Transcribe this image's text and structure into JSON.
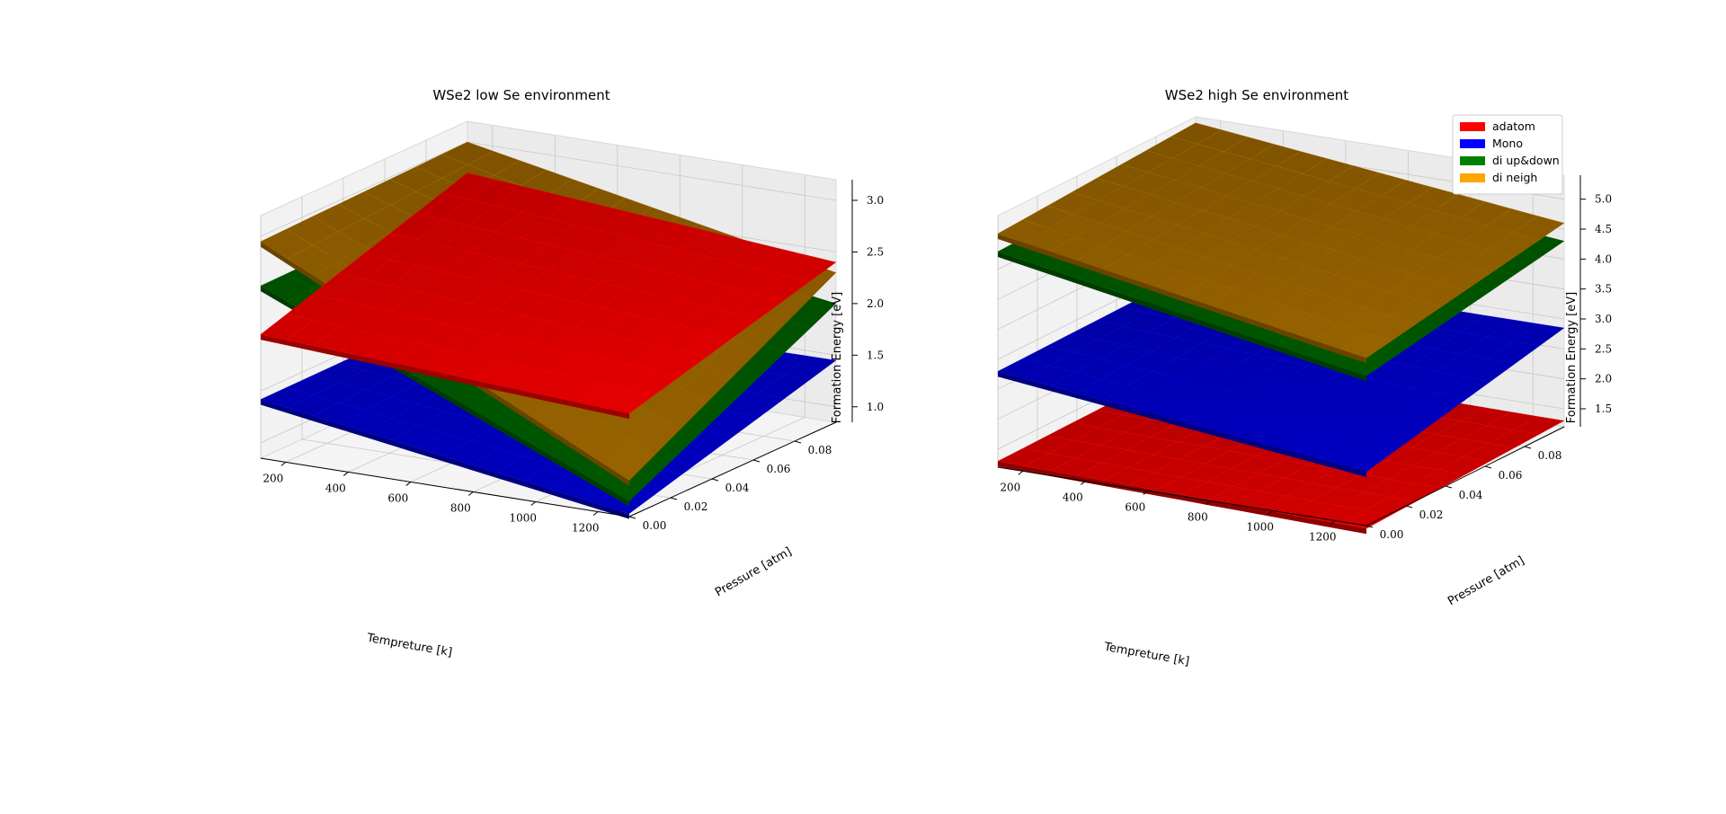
{
  "chart_data": [
    {
      "type": "surface3d",
      "title": "WSe2 low Se environment",
      "xlabel": "Tempreture [k]",
      "ylabel": "Pressure [atm]",
      "zlabel": "Formation Energy [eV]",
      "xlim": [
        120,
        1300
      ],
      "ylim": [
        0,
        0.1
      ],
      "zlim": [
        0.85,
        3.2
      ],
      "xticks": [
        "200",
        "400",
        "600",
        "800",
        "1000",
        "1200"
      ],
      "yticks": [
        "0.00",
        "0.02",
        "0.04",
        "0.06",
        "0.08"
      ],
      "zticks": [
        "1.0",
        "1.5",
        "2.0",
        "2.5",
        "3.0"
      ],
      "grid": true,
      "series": [
        {
          "name": "Mono",
          "color": "#0000b0",
          "z_corners": {
            "tmin_p0": 1.42,
            "tmax_p0": 0.88,
            "tmin_pmax": 1.43,
            "tmax_pmax": 1.45
          }
        },
        {
          "name": "di up&down",
          "color": "#005000",
          "z_corners": {
            "tmin_p0": 2.52,
            "tmax_p0": 1.0,
            "tmin_pmax": 2.55,
            "tmax_pmax": 2.0
          }
        },
        {
          "name": "di neigh",
          "color": "#8a5a00",
          "z_corners": {
            "tmin_p0": 2.95,
            "tmax_p0": 1.2,
            "tmin_pmax": 3.0,
            "tmax_pmax": 2.3
          }
        },
        {
          "name": "adatom",
          "color": "#d00000",
          "z_corners": {
            "tmin_p0": 2.05,
            "tmax_p0": 1.85,
            "tmin_pmax": 2.7,
            "tmax_pmax": 2.4
          }
        }
      ]
    },
    {
      "type": "surface3d",
      "title": "WSe2 high Se environment",
      "xlabel": "Tempreture [k]",
      "ylabel": "Pressure [atm]",
      "zlabel": "Formation Energy [eV]",
      "xlim": [
        120,
        1300
      ],
      "ylim": [
        0,
        0.1
      ],
      "zlim": [
        1.2,
        5.4
      ],
      "xticks": [
        "200",
        "400",
        "600",
        "800",
        "1000",
        "1200"
      ],
      "yticks": [
        "0.00",
        "0.02",
        "0.04",
        "0.06",
        "0.08"
      ],
      "zticks": [
        "1.5",
        "2.0",
        "2.5",
        "3.0",
        "3.5",
        "4.0",
        "4.5",
        "5.0"
      ],
      "grid": true,
      "legend": {
        "placement": "top-right",
        "entries": [
          {
            "label": "adatom",
            "color": "#ff0000"
          },
          {
            "label": "Mono",
            "color": "#0000ff"
          },
          {
            "label": "di up&down",
            "color": "#008000"
          },
          {
            "label": "di neigh",
            "color": "#ffa500"
          }
        ]
      },
      "series": [
        {
          "name": "adatom",
          "color": "#c00000",
          "z_corners": {
            "tmin_p0": 1.3,
            "tmax_p0": 1.15,
            "tmin_pmax": 1.35,
            "tmax_pmax": 1.3
          }
        },
        {
          "name": "Mono",
          "color": "#0000b0",
          "z_corners": {
            "tmin_p0": 2.8,
            "tmax_p0": 2.1,
            "tmin_pmax": 2.85,
            "tmax_pmax": 2.85
          }
        },
        {
          "name": "di up&down",
          "color": "#005000",
          "z_corners": {
            "tmin_p0": 4.8,
            "tmax_p0": 3.7,
            "tmin_pmax": 4.9,
            "tmax_pmax": 4.3
          }
        },
        {
          "name": "di neigh",
          "color": "#8a5a00",
          "z_corners": {
            "tmin_p0": 5.1,
            "tmax_p0": 4.0,
            "tmin_pmax": 5.3,
            "tmax_pmax": 4.6
          }
        }
      ]
    }
  ]
}
